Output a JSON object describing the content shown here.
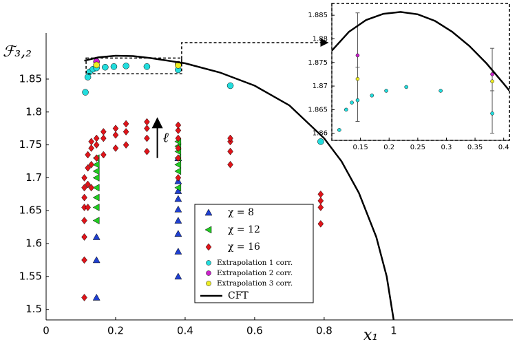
{
  "chart_data": [
    {
      "type": "scatter",
      "x_label": "x₁",
      "y_label": "ℱ₃,₂",
      "xlim": [
        0,
        1.343
      ],
      "ylim": [
        1.484,
        1.92
      ],
      "xticks": [
        0,
        0.2,
        0.4,
        0.6,
        0.8,
        1
      ],
      "yticks": [
        1.5,
        1.55,
        1.6,
        1.65,
        1.7,
        1.75,
        1.8,
        1.85
      ],
      "annotation": "ℓ",
      "arrow": {
        "x": 0.32,
        "from": 1.73,
        "to": 1.79
      },
      "zoom_box": {
        "x": [
          0.115,
          0.39
        ],
        "y": [
          1.858,
          1.882
        ]
      },
      "legend": "lower center",
      "series": [
        {
          "name": "χ = 8",
          "marker": "triangle",
          "color": "#1f3fd0",
          "x": [
            0.145,
            0.145,
            0.145,
            0.38,
            0.38,
            0.38,
            0.38,
            0.38,
            0.38,
            0.38,
            0.38,
            0.38
          ],
          "values": [
            1.518,
            1.575,
            1.61,
            1.55,
            1.588,
            1.615,
            1.635,
            1.652,
            1.668,
            1.68,
            1.695,
            1.73
          ]
        },
        {
          "name": "χ = 12",
          "marker": "triangle-left",
          "color": "#22cc22",
          "x": [
            0.145,
            0.145,
            0.145,
            0.145,
            0.145,
            0.145,
            0.145,
            0.145,
            0.38,
            0.38,
            0.38,
            0.38,
            0.38,
            0.38,
            0.38
          ],
          "values": [
            1.635,
            1.655,
            1.67,
            1.685,
            1.7,
            1.71,
            1.72,
            1.73,
            1.685,
            1.71,
            1.72,
            1.73,
            1.74,
            1.748,
            1.755
          ]
        },
        {
          "name": "χ = 16",
          "marker": "diamond",
          "color": "#e0141a",
          "x": [
            0.11,
            0.11,
            0.11,
            0.11,
            0.11,
            0.11,
            0.11,
            0.11,
            0.12,
            0.12,
            0.12,
            0.12,
            0.13,
            0.13,
            0.13,
            0.13,
            0.145,
            0.145,
            0.145,
            0.165,
            0.165,
            0.165,
            0.2,
            0.2,
            0.2,
            0.23,
            0.23,
            0.23,
            0.29,
            0.29,
            0.29,
            0.29,
            0.38,
            0.38,
            0.38,
            0.38,
            0.38,
            0.38,
            0.53,
            0.53,
            0.53,
            0.53,
            0.79,
            0.79,
            0.79,
            0.79
          ],
          "values": [
            1.518,
            1.575,
            1.61,
            1.635,
            1.655,
            1.67,
            1.685,
            1.7,
            1.655,
            1.69,
            1.715,
            1.735,
            1.685,
            1.72,
            1.745,
            1.755,
            1.73,
            1.75,
            1.76,
            1.735,
            1.76,
            1.77,
            1.745,
            1.765,
            1.775,
            1.75,
            1.77,
            1.782,
            1.74,
            1.76,
            1.775,
            1.785,
            1.7,
            1.73,
            1.745,
            1.76,
            1.772,
            1.78,
            1.72,
            1.74,
            1.755,
            1.76,
            1.63,
            1.655,
            1.665,
            1.675
          ]
        },
        {
          "name": "Extrapolation 1 corr.",
          "marker": "circle",
          "color": "#22dddd",
          "x": [
            0.113,
            0.12,
            0.125,
            0.135,
            0.145,
            0.17,
            0.195,
            0.23,
            0.29,
            0.38,
            0.53,
            0.79
          ],
          "values": [
            1.83,
            1.853,
            1.861,
            1.865,
            1.867,
            1.868,
            1.869,
            1.87,
            1.869,
            1.864,
            1.84,
            1.755
          ]
        },
        {
          "name": "Extrapolation 2 corr.",
          "marker": "circle",
          "color": "#cc22cc",
          "x": [
            0.145,
            0.38
          ],
          "values": [
            1.8765,
            1.8725
          ]
        },
        {
          "name": "Extrapolation 3 corr.",
          "marker": "circle",
          "color": "#eeee22",
          "x": [
            0.145,
            0.38
          ],
          "values": [
            1.8715,
            1.871
          ]
        },
        {
          "name": "CFT",
          "marker": "line",
          "color": "#000000",
          "x": [
            0.11,
            0.15,
            0.2,
            0.25,
            0.3,
            0.4,
            0.5,
            0.6,
            0.7,
            0.8,
            0.85,
            0.9,
            0.95,
            0.98,
            1.0
          ],
          "values": [
            1.878,
            1.883,
            1.8855,
            1.885,
            1.882,
            1.874,
            1.86,
            1.84,
            1.81,
            1.76,
            1.725,
            1.677,
            1.61,
            1.55,
            1.484
          ]
        }
      ]
    },
    {
      "type": "scatter",
      "xlim": [
        0.1,
        0.41
      ],
      "ylim": [
        1.8585,
        1.8875
      ],
      "xticks": [
        0.15,
        0.2,
        0.25,
        0.3,
        0.35,
        0.4
      ],
      "yticks": [
        1.86,
        1.865,
        1.87,
        1.875,
        1.88,
        1.885
      ],
      "error_bars": [
        {
          "x": 0.145,
          "y": 1.874,
          "err": 0.0115
        },
        {
          "x": 0.38,
          "y": 1.869,
          "err": 0.009
        }
      ],
      "series": [
        {
          "marker": "circle",
          "color": "#22dddd",
          "x": [
            0.113,
            0.125,
            0.135,
            0.145,
            0.17,
            0.195,
            0.23,
            0.29,
            0.38
          ],
          "values": [
            1.8607,
            1.865,
            1.8665,
            1.867,
            1.868,
            1.869,
            1.8698,
            1.869,
            1.8642
          ]
        },
        {
          "marker": "circle",
          "color": "#cc22cc",
          "x": [
            0.145,
            0.38
          ],
          "values": [
            1.8765,
            1.8725
          ]
        },
        {
          "marker": "circle",
          "color": "#eeee22",
          "x": [
            0.145,
            0.38
          ],
          "values": [
            1.8715,
            1.871
          ]
        },
        {
          "marker": "line",
          "color": "#000000",
          "x": [
            0.1,
            0.13,
            0.16,
            0.19,
            0.22,
            0.25,
            0.28,
            0.31,
            0.34,
            0.37,
            0.4,
            0.41
          ],
          "values": [
            1.8775,
            1.8815,
            1.884,
            1.8853,
            1.8857,
            1.8852,
            1.8838,
            1.8815,
            1.8785,
            1.8748,
            1.8705,
            1.869
          ]
        }
      ]
    }
  ]
}
